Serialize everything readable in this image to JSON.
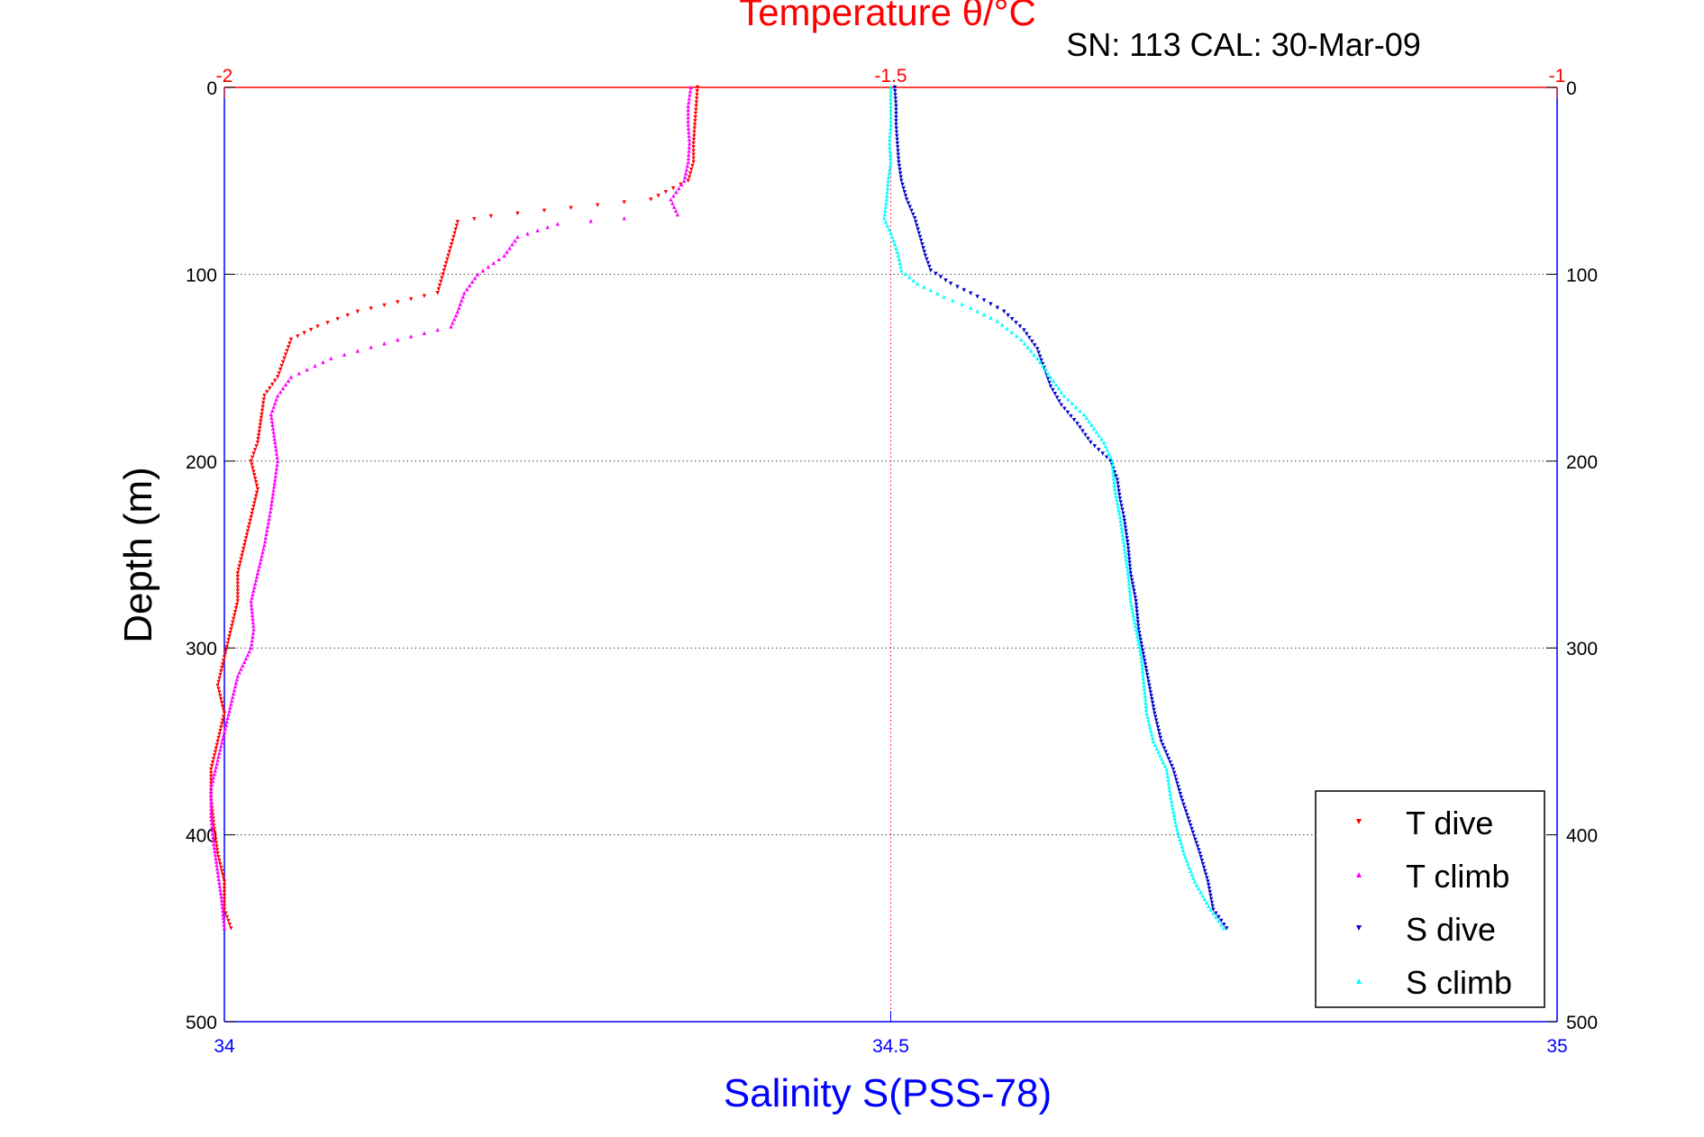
{
  "chart_data": {
    "type": "scatter",
    "title": "Temperature θ/°C",
    "subtitle": "SN: 113  CAL: 30-Mar-09",
    "ylabel": "Depth (m)",
    "xlabel_bottom": "Salinity S(PSS-78)",
    "xlabel_top": "Temperature θ/°C",
    "ylim": [
      0,
      500
    ],
    "y_reversed": true,
    "x_bottom_lim": [
      34,
      35
    ],
    "x_top_lim": [
      -2,
      -1
    ],
    "y_ticks": [
      "0",
      "100",
      "200",
      "300",
      "400",
      "500"
    ],
    "x_bottom_ticks": [
      "34",
      "34.5",
      "35"
    ],
    "x_top_ticks": [
      "-2",
      "-1.5",
      "-1"
    ],
    "grid": true,
    "legend_position": "bottom-right",
    "colors": {
      "temperature_axis": "#ff0000",
      "salinity_axis": "#0000ff",
      "t_dive": "#ff0000",
      "t_climb": "#ff00ff",
      "s_dive": "#0000cc",
      "s_climb": "#00ffff"
    },
    "series": [
      {
        "name": "T dive",
        "axis": "temperature",
        "marker": "triangle-down",
        "points": [
          [
            -1.645,
            0
          ],
          [
            -1.646,
            10
          ],
          [
            -1.647,
            20
          ],
          [
            -1.648,
            30
          ],
          [
            -1.648,
            40
          ],
          [
            -1.652,
            50
          ],
          [
            -1.68,
            60
          ],
          [
            -1.72,
            63
          ],
          [
            -1.76,
            66
          ],
          [
            -1.8,
            69
          ],
          [
            -1.825,
            72
          ],
          [
            -1.828,
            80
          ],
          [
            -1.832,
            90
          ],
          [
            -1.836,
            100
          ],
          [
            -1.84,
            110
          ],
          [
            -1.87,
            115
          ],
          [
            -1.9,
            120
          ],
          [
            -1.93,
            128
          ],
          [
            -1.95,
            135
          ],
          [
            -1.955,
            145
          ],
          [
            -1.96,
            155
          ],
          [
            -1.97,
            165
          ],
          [
            -1.972,
            175
          ],
          [
            -1.975,
            190
          ],
          [
            -1.98,
            200
          ],
          [
            -1.975,
            215
          ],
          [
            -1.98,
            230
          ],
          [
            -1.985,
            245
          ],
          [
            -1.99,
            260
          ],
          [
            -1.99,
            275
          ],
          [
            -1.995,
            290
          ],
          [
            -2.0,
            305
          ],
          [
            -2.005,
            320
          ],
          [
            -2.0,
            335
          ],
          [
            -2.005,
            350
          ],
          [
            -2.01,
            365
          ],
          [
            -2.01,
            380
          ],
          [
            -2.008,
            395
          ],
          [
            -2.005,
            410
          ],
          [
            -2.0,
            425
          ],
          [
            -2.0,
            440
          ],
          [
            -1.995,
            450
          ]
        ]
      },
      {
        "name": "T climb",
        "axis": "temperature",
        "marker": "triangle-up",
        "points": [
          [
            -1.65,
            0
          ],
          [
            -1.652,
            10
          ],
          [
            -1.652,
            20
          ],
          [
            -1.651,
            30
          ],
          [
            -1.652,
            40
          ],
          [
            -1.655,
            50
          ],
          [
            -1.665,
            60
          ],
          [
            -1.66,
            68
          ],
          [
            -1.7,
            70
          ],
          [
            -1.75,
            73
          ],
          [
            -1.78,
            80
          ],
          [
            -1.79,
            90
          ],
          [
            -1.81,
            100
          ],
          [
            -1.82,
            110
          ],
          [
            -1.825,
            120
          ],
          [
            -1.83,
            128
          ],
          [
            -1.87,
            135
          ],
          [
            -1.92,
            145
          ],
          [
            -1.95,
            155
          ],
          [
            -1.96,
            165
          ],
          [
            -1.965,
            175
          ],
          [
            -1.962,
            190
          ],
          [
            -1.96,
            200
          ],
          [
            -1.962,
            210
          ],
          [
            -1.965,
            225
          ],
          [
            -1.97,
            245
          ],
          [
            -1.975,
            260
          ],
          [
            -1.98,
            275
          ],
          [
            -1.978,
            290
          ],
          [
            -1.98,
            300
          ],
          [
            -1.99,
            315
          ],
          [
            -1.995,
            330
          ],
          [
            -2.0,
            345
          ],
          [
            -2.005,
            360
          ],
          [
            -2.01,
            375
          ],
          [
            -2.01,
            390
          ],
          [
            -2.008,
            405
          ],
          [
            -2.005,
            420
          ],
          [
            -2.002,
            435
          ],
          [
            -2.0,
            450
          ]
        ]
      },
      {
        "name": "S dive",
        "axis": "salinity",
        "marker": "triangle-down",
        "points": [
          [
            34.503,
            0
          ],
          [
            34.504,
            10
          ],
          [
            34.504,
            20
          ],
          [
            34.505,
            30
          ],
          [
            34.506,
            40
          ],
          [
            34.508,
            50
          ],
          [
            34.512,
            60
          ],
          [
            34.518,
            70
          ],
          [
            34.522,
            80
          ],
          [
            34.526,
            90
          ],
          [
            34.53,
            98
          ],
          [
            34.545,
            105
          ],
          [
            34.565,
            112
          ],
          [
            34.585,
            120
          ],
          [
            34.6,
            130
          ],
          [
            34.61,
            140
          ],
          [
            34.615,
            150
          ],
          [
            34.62,
            160
          ],
          [
            34.628,
            170
          ],
          [
            34.64,
            180
          ],
          [
            34.65,
            190
          ],
          [
            34.665,
            200
          ],
          [
            34.67,
            210
          ],
          [
            34.672,
            220
          ],
          [
            34.675,
            230
          ],
          [
            34.678,
            245
          ],
          [
            34.68,
            260
          ],
          [
            34.684,
            275
          ],
          [
            34.686,
            290
          ],
          [
            34.69,
            305
          ],
          [
            34.694,
            320
          ],
          [
            34.698,
            335
          ],
          [
            34.703,
            350
          ],
          [
            34.712,
            365
          ],
          [
            34.718,
            380
          ],
          [
            34.725,
            395
          ],
          [
            34.732,
            410
          ],
          [
            34.738,
            425
          ],
          [
            34.742,
            440
          ],
          [
            34.752,
            450
          ]
        ]
      },
      {
        "name": "S climb",
        "axis": "salinity",
        "marker": "triangle-up",
        "points": [
          [
            34.5,
            0
          ],
          [
            34.5,
            10
          ],
          [
            34.5,
            20
          ],
          [
            34.499,
            30
          ],
          [
            34.5,
            40
          ],
          [
            34.498,
            50
          ],
          [
            34.497,
            60
          ],
          [
            34.495,
            70
          ],
          [
            34.5,
            78
          ],
          [
            34.505,
            88
          ],
          [
            34.508,
            98
          ],
          [
            34.52,
            105
          ],
          [
            34.54,
            112
          ],
          [
            34.56,
            118
          ],
          [
            34.58,
            125
          ],
          [
            34.598,
            135
          ],
          [
            34.61,
            145
          ],
          [
            34.62,
            155
          ],
          [
            34.63,
            165
          ],
          [
            34.645,
            175
          ],
          [
            34.66,
            190
          ],
          [
            34.666,
            200
          ],
          [
            34.668,
            215
          ],
          [
            34.672,
            230
          ],
          [
            34.675,
            245
          ],
          [
            34.678,
            260
          ],
          [
            34.68,
            275
          ],
          [
            34.684,
            290
          ],
          [
            34.688,
            305
          ],
          [
            34.69,
            320
          ],
          [
            34.692,
            335
          ],
          [
            34.697,
            350
          ],
          [
            34.707,
            365
          ],
          [
            34.71,
            380
          ],
          [
            34.714,
            395
          ],
          [
            34.72,
            410
          ],
          [
            34.728,
            425
          ],
          [
            34.74,
            440
          ],
          [
            34.75,
            450
          ]
        ]
      }
    ]
  }
}
